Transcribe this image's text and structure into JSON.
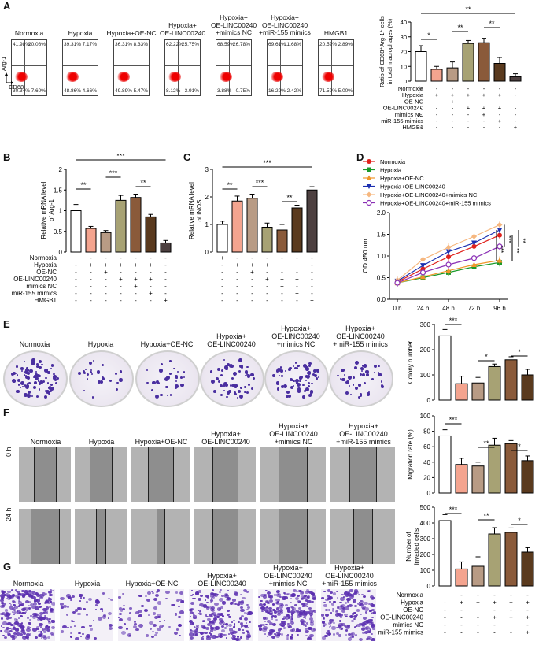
{
  "panels": {
    "A": "A",
    "B": "B",
    "C": "C",
    "D": "D",
    "E": "E",
    "F": "F",
    "G": "G"
  },
  "panel_a": {
    "conditions": [
      "Normoxia",
      "Hypoxia",
      "Hypoxia+OE-NC",
      "Hypoxia+\nOE-LINC00240",
      "Hypoxia+\nOE-LINC00240\n+mimics NC",
      "Hypoxia+\nOE-LINC00240\n+miR-155 mimics",
      "HMGB1"
    ],
    "quadrants": [
      [
        "41.98%",
        "20.08%",
        "30.34%",
        "7.60%"
      ],
      [
        "39.31%",
        "7.17%",
        "48.86%",
        "4.66%"
      ],
      [
        "36.31%",
        "8.33%",
        "49.89%",
        "5.47%"
      ],
      [
        "62.22%",
        "25.75%",
        "8.12%",
        "3.91%"
      ],
      [
        "68.59%",
        "26.78%",
        "3.88%",
        "0.75%"
      ],
      [
        "69.61%",
        "11.68%",
        "16.29%",
        "2.42%"
      ],
      [
        "20.52%",
        "2.89%",
        "71.59%",
        "5.00%"
      ]
    ],
    "y_axis_label": "Arg-1",
    "x_axis_label": "CD68"
  },
  "table_rows_a": [
    {
      "label": "Normoxia",
      "signs": [
        "+",
        "-",
        "-",
        "-",
        "-",
        "-",
        "-"
      ]
    },
    {
      "label": "Hypoxia",
      "signs": [
        "-",
        "+",
        "+",
        "+",
        "+",
        "+",
        "-"
      ]
    },
    {
      "label": "OE-NC",
      "signs": [
        "-",
        "-",
        "+",
        "-",
        "-",
        "-",
        "-"
      ]
    },
    {
      "label": "OE-LINC00240",
      "signs": [
        "-",
        "-",
        "-",
        "+",
        "+",
        "+",
        "-"
      ]
    },
    {
      "label": "mimics NC",
      "signs": [
        "-",
        "-",
        "-",
        "-",
        "+",
        "-",
        "-"
      ]
    },
    {
      "label": "miR-155 mimics",
      "signs": [
        "-",
        "-",
        "-",
        "-",
        "-",
        "+",
        "-"
      ]
    },
    {
      "label": "HMGB1",
      "signs": [
        "-",
        "-",
        "-",
        "-",
        "-",
        "-",
        "+"
      ]
    }
  ],
  "table_rows_e": [
    {
      "label": "Normoxia",
      "signs": [
        "+",
        "-",
        "-",
        "-",
        "-",
        "-"
      ]
    },
    {
      "label": "Hypoxia",
      "signs": [
        "-",
        "+",
        "+",
        "+",
        "+",
        "+"
      ]
    },
    {
      "label": "OE-NC",
      "signs": [
        "-",
        "-",
        "+",
        "-",
        "-",
        "-"
      ]
    },
    {
      "label": "OE-LINC00240",
      "signs": [
        "-",
        "-",
        "-",
        "+",
        "+",
        "+"
      ]
    },
    {
      "label": "mimics NC",
      "signs": [
        "-",
        "-",
        "-",
        "-",
        "+",
        "-"
      ]
    },
    {
      "label": "miR-155 mimics",
      "signs": [
        "-",
        "-",
        "-",
        "-",
        "-",
        "+"
      ]
    }
  ],
  "bar_colors_7": [
    "#ffffff",
    "#f4a48f",
    "#b89b85",
    "#a7a274",
    "#8a5a3a",
    "#5a3a1e",
    "#4d4040"
  ],
  "bar_colors_6": [
    "#ffffff",
    "#f4a48f",
    "#b89b85",
    "#a7a274",
    "#8a5a3a",
    "#5a3a1e"
  ],
  "panel_f": {
    "rows": [
      "0 h",
      "24 h"
    ],
    "conditions": [
      "Normoxia",
      "Hypoxia",
      "Hypoxia+OE-NC",
      "Hypoxia+\nOE-LINC00240",
      "Hypoxia+\nOE-LINC00240\n+mimics NC",
      "Hypoxia+\nOE-LINC00240\n+miR-155 mimics"
    ]
  },
  "panel_e": {
    "conditions": [
      "Normoxia",
      "Hypoxia",
      "Hypoxia+OE-NC",
      "Hypoxia+\nOE-LINC00240",
      "Hypoxia+\nOE-LINC00240\n+mimics NC",
      "Hypoxia+\nOE-LINC00240\n+miR-155 mimics"
    ]
  },
  "panel_g": {
    "conditions": [
      "Normoxia",
      "Hypoxia",
      "Hypoxia+OE-NC",
      "Hypoxia+\nOE-LINC00240",
      "Hypoxia+\nOE-LINC00240\n+mimics NC",
      "Hypoxia+\nOE-LINC00240\n+miR-155 mimics"
    ]
  },
  "chart_data": [
    {
      "id": "A",
      "type": "bar",
      "ylabel": "Ratio of CD68⁺ Arg-1⁺ cells in total macrophages (%)",
      "ylim": [
        0,
        40
      ],
      "yticks": [
        0,
        10,
        20,
        30,
        40
      ],
      "values": [
        20,
        8,
        9,
        25.5,
        26,
        12,
        3
      ],
      "errors": [
        4,
        2,
        4,
        2,
        3,
        4,
        2
      ],
      "significance": [
        {
          "a": 0,
          "b": 1,
          "label": "*"
        },
        {
          "a": 2,
          "b": 3,
          "label": "**"
        },
        {
          "a": 4,
          "b": 5,
          "label": "**"
        },
        {
          "a": 0,
          "b": 6,
          "label": "**"
        }
      ]
    },
    {
      "id": "B",
      "type": "bar",
      "ylabel": "Relative mRNA level of Arg-1",
      "ylim": [
        0,
        2.0
      ],
      "yticks": [
        0,
        0.5,
        1.0,
        1.5,
        2.0
      ],
      "values": [
        1.0,
        0.57,
        0.47,
        1.25,
        1.32,
        0.85,
        0.22
      ],
      "errors": [
        0.15,
        0.05,
        0.05,
        0.12,
        0.08,
        0.06,
        0.06
      ],
      "significance": [
        {
          "a": 0,
          "b": 1,
          "label": "**"
        },
        {
          "a": 2,
          "b": 3,
          "label": "***"
        },
        {
          "a": 4,
          "b": 5,
          "label": "**"
        },
        {
          "a": 0,
          "b": 6,
          "label": "***"
        }
      ]
    },
    {
      "id": "C",
      "type": "bar",
      "ylabel": "Relative mRNA level of iNOS",
      "ylim": [
        0,
        3
      ],
      "yticks": [
        0,
        1,
        2,
        3
      ],
      "values": [
        1.0,
        1.85,
        1.95,
        0.9,
        0.8,
        1.6,
        2.25
      ],
      "errors": [
        0.12,
        0.18,
        0.15,
        0.15,
        0.2,
        0.1,
        0.12
      ],
      "significance": [
        {
          "a": 0,
          "b": 1,
          "label": "**"
        },
        {
          "a": 2,
          "b": 3,
          "label": "***"
        },
        {
          "a": 4,
          "b": 5,
          "label": "**"
        },
        {
          "a": 0,
          "b": 6,
          "label": "***"
        }
      ]
    },
    {
      "id": "D",
      "type": "line",
      "ylabel": "OD 450 nm",
      "xlabel": "",
      "x": [
        "0 h",
        "24 h",
        "48 h",
        "72 h",
        "96 h"
      ],
      "ylim": [
        0,
        2.0
      ],
      "yticks": [
        0,
        0.5,
        1.0,
        1.5,
        2.0
      ],
      "series": [
        {
          "name": "Normoxia",
          "color": "#e0211b",
          "marker": "circle",
          "values": [
            0.4,
            0.7,
            0.98,
            1.22,
            1.48
          ]
        },
        {
          "name": "Hypoxia",
          "color": "#1a9a2a",
          "marker": "square",
          "values": [
            0.38,
            0.5,
            0.62,
            0.75,
            0.85
          ]
        },
        {
          "name": "Hypoxia+OE-NC",
          "color": "#f0962a",
          "marker": "triangle",
          "values": [
            0.38,
            0.52,
            0.66,
            0.8,
            0.9
          ]
        },
        {
          "name": "Hypoxia+OE-LINC00240",
          "color": "#1c2fb0",
          "marker": "triangle-down",
          "values": [
            0.42,
            0.78,
            1.1,
            1.3,
            1.6
          ]
        },
        {
          "name": "Hypoxia+OE-LINC00240+mimics NC",
          "color": "#f6b77f",
          "marker": "diamond",
          "values": [
            0.44,
            0.92,
            1.2,
            1.45,
            1.72
          ]
        },
        {
          "name": "Hypoxia+OE-LINC00240+miR-155 mimics",
          "color": "#8a2fb5",
          "marker": "circle-open",
          "values": [
            0.38,
            0.62,
            0.8,
            0.95,
            1.22
          ]
        }
      ],
      "significance": [
        "***",
        "***",
        "**",
        "**"
      ]
    },
    {
      "id": "E",
      "type": "bar",
      "ylabel": "Colony number",
      "ylim": [
        0,
        300
      ],
      "yticks": [
        0,
        100,
        200,
        300
      ],
      "values": [
        255,
        65,
        68,
        133,
        160,
        100
      ],
      "errors": [
        25,
        30,
        22,
        10,
        12,
        22
      ],
      "significance": [
        {
          "a": 0,
          "b": 1,
          "label": "***"
        },
        {
          "a": 2,
          "b": 3,
          "label": "*"
        },
        {
          "a": 4,
          "b": 5,
          "label": "*"
        }
      ]
    },
    {
      "id": "F",
      "type": "bar",
      "ylabel": "Migration rate (%)",
      "ylim": [
        0,
        100
      ],
      "yticks": [
        0,
        20,
        40,
        60,
        80,
        100
      ],
      "values": [
        74,
        37,
        35,
        62,
        64,
        42
      ],
      "errors": [
        8,
        8,
        5,
        9,
        4,
        6
      ],
      "significance": [
        {
          "a": 0,
          "b": 1,
          "label": "***"
        },
        {
          "a": 2,
          "b": 3,
          "label": "**"
        },
        {
          "a": 4,
          "b": 5,
          "label": "*"
        }
      ]
    },
    {
      "id": "G",
      "type": "bar",
      "ylabel": "Number of invaded cells",
      "ylim": [
        0,
        500
      ],
      "yticks": [
        0,
        100,
        200,
        300,
        400,
        500
      ],
      "values": [
        415,
        108,
        125,
        330,
        340,
        215
      ],
      "errors": [
        38,
        45,
        60,
        40,
        28,
        28
      ],
      "significance": [
        {
          "a": 0,
          "b": 1,
          "label": "***"
        },
        {
          "a": 2,
          "b": 3,
          "label": "**"
        },
        {
          "a": 4,
          "b": 5,
          "label": "*"
        }
      ]
    }
  ]
}
